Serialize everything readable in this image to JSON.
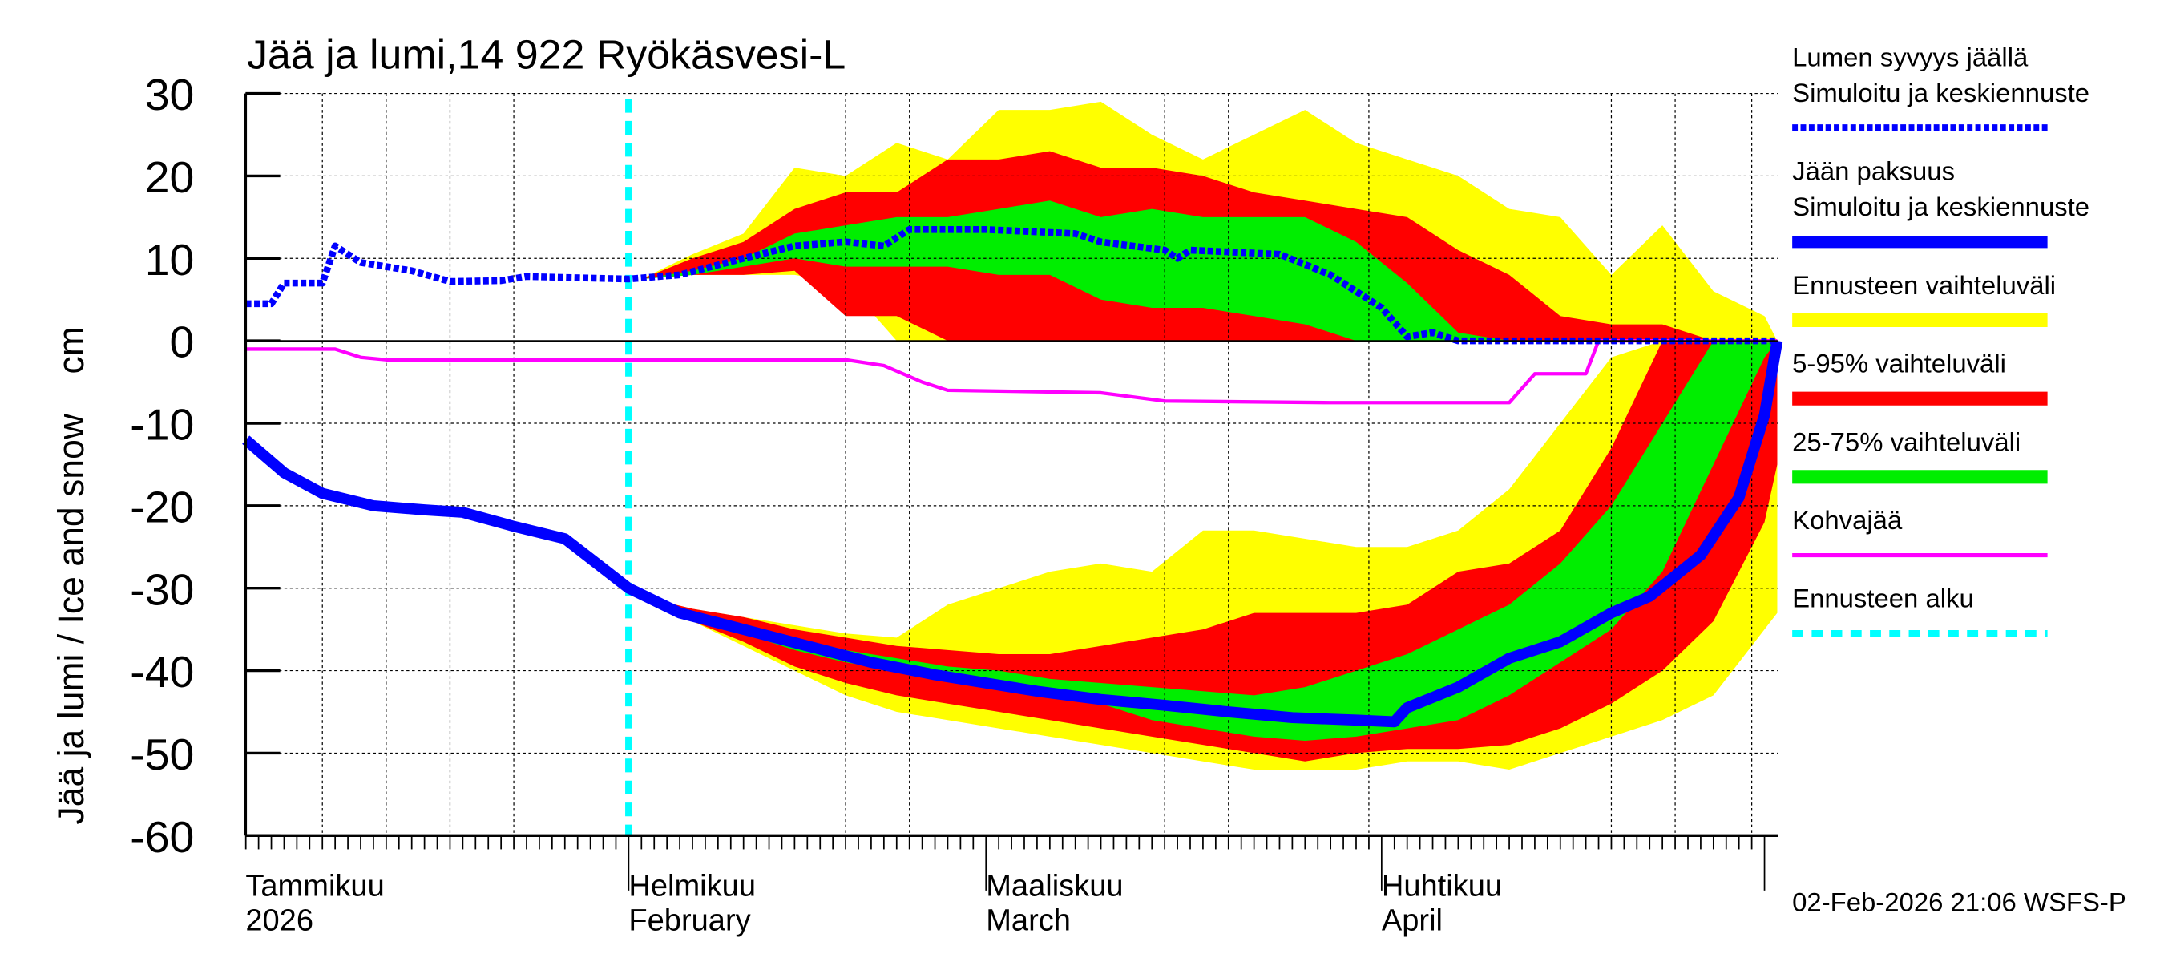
{
  "chart_data": {
    "type": "area",
    "title": "Jää ja lumi,14 922 Ryökäsvesi-L",
    "ylabel": "Jää ja lumi / Ice and snow    cm",
    "ylim": [
      -60,
      30
    ],
    "yticks": [
      30,
      20,
      10,
      0,
      -10,
      -20,
      -30,
      -40,
      -50,
      -60
    ],
    "xlim": [
      "2026-01-02",
      "2026-05-02"
    ],
    "grid": true,
    "legend_placement": "right",
    "month_labels": [
      {
        "date": "2026-01-01",
        "fi": "Tammikuu",
        "en": "2026"
      },
      {
        "date": "2026-02-01",
        "fi": "Helmikuu",
        "en": "February"
      },
      {
        "date": "2026-03-01",
        "fi": "Maaliskuu",
        "en": "March"
      },
      {
        "date": "2026-04-01",
        "fi": "Huhtikuu",
        "en": "April"
      }
    ],
    "forecast_start": "2026-02-01",
    "footer": "02-Feb-2026 21:06 WSFS-P",
    "colors": {
      "snow": "#0000ff",
      "ice": "#0000ff",
      "yellow": "#ffff00",
      "red": "#ff0000",
      "green": "#00ee00",
      "kohva": "#ff00ff",
      "forecast_start": "#00ffff"
    },
    "legend": [
      {
        "label1": "Lumen syvyys jäällä",
        "label2": "Simuloitu ja keskiennuste",
        "style": "dotted",
        "color": "#0000ff"
      },
      {
        "label1": "Jään paksuus",
        "label2": "Simuloitu ja keskiennuste",
        "style": "thick",
        "color": "#0000ff"
      },
      {
        "label1": "Ennusteen vaihteluväli",
        "style": "band",
        "color": "#ffff00"
      },
      {
        "label1": "5-95% vaihteluväli",
        "style": "band",
        "color": "#ff0000"
      },
      {
        "label1": "25-75% vaihteluväli",
        "style": "band",
        "color": "#00ee00"
      },
      {
        "label1": "Kohvajää",
        "style": "line",
        "color": "#ff00ff"
      },
      {
        "label1": "Ennusteen alku",
        "style": "dashed",
        "color": "#00ffff"
      }
    ],
    "snow_depth": {
      "dates": [
        "2026-01-02",
        "2026-01-04",
        "2026-01-05",
        "2026-01-08",
        "2026-01-09",
        "2026-01-11",
        "2026-01-15",
        "2026-01-18",
        "2026-01-22",
        "2026-01-24",
        "2026-02-01",
        "2026-02-05",
        "2026-02-10",
        "2026-02-14",
        "2026-02-18",
        "2026-02-21",
        "2026-02-23",
        "2026-03-01",
        "2026-03-08",
        "2026-03-10",
        "2026-03-15",
        "2026-03-16",
        "2026-03-17",
        "2026-03-24",
        "2026-03-28",
        "2026-04-01",
        "2026-04-03",
        "2026-04-05",
        "2026-04-07",
        "2026-05-02"
      ],
      "values": [
        4.5,
        4.5,
        7,
        7,
        11.5,
        9.5,
        8.5,
        7.2,
        7.3,
        7.8,
        7.5,
        8,
        10,
        11.5,
        12,
        11.5,
        13.5,
        13.5,
        13,
        12,
        11,
        10,
        11,
        10.5,
        8,
        4,
        0.5,
        1,
        0,
        0
      ]
    },
    "ice_thickness": {
      "dates": [
        "2026-01-02",
        "2026-01-05",
        "2026-01-08",
        "2026-01-12",
        "2026-01-16",
        "2026-01-19",
        "2026-01-23",
        "2026-01-27",
        "2026-02-01",
        "2026-02-05",
        "2026-02-10",
        "2026-02-15",
        "2026-02-20",
        "2026-02-25",
        "2026-03-01",
        "2026-03-05",
        "2026-03-10",
        "2026-03-15",
        "2026-03-20",
        "2026-03-25",
        "2026-03-30",
        "2026-04-02",
        "2026-04-03",
        "2026-04-07",
        "2026-04-11",
        "2026-04-15",
        "2026-04-19",
        "2026-04-22",
        "2026-04-26",
        "2026-04-29",
        "2026-05-01",
        "2026-05-02"
      ],
      "values": [
        -12,
        -16,
        -18.5,
        -20,
        -20.5,
        -20.8,
        -22.5,
        -24,
        -30,
        -33,
        -35,
        -37,
        -39,
        -40.5,
        -41.5,
        -42.5,
        -43.5,
        -44.2,
        -45,
        -45.7,
        -46,
        -46.2,
        -44.5,
        -42,
        -38.5,
        -36.5,
        -33,
        -31,
        -26,
        -19,
        -9,
        0
      ]
    },
    "kohvajaa": {
      "dates": [
        "2026-01-02",
        "2026-01-09",
        "2026-01-11",
        "2026-01-13",
        "2026-02-18",
        "2026-02-21",
        "2026-02-24",
        "2026-02-26",
        "2026-03-10",
        "2026-03-15",
        "2026-03-28",
        "2026-04-11",
        "2026-04-13",
        "2026-04-17",
        "2026-04-18",
        "2026-05-02"
      ],
      "values": [
        -1,
        -1,
        -2,
        -2.3,
        -2.3,
        -3,
        -5,
        -6,
        -6.3,
        -7.3,
        -7.5,
        -7.5,
        -4,
        -4,
        0,
        0
      ]
    },
    "forecast_dates": [
      "2026-02-02",
      "2026-02-06",
      "2026-02-10",
      "2026-02-14",
      "2026-02-18",
      "2026-02-22",
      "2026-02-26",
      "2026-03-02",
      "2026-03-06",
      "2026-03-10",
      "2026-03-14",
      "2026-03-18",
      "2026-03-22",
      "2026-03-26",
      "2026-03-30",
      "2026-04-03",
      "2026-04-07",
      "2026-04-11",
      "2026-04-15",
      "2026-04-19",
      "2026-04-23",
      "2026-04-27",
      "2026-05-01",
      "2026-05-02"
    ],
    "snow_bands": {
      "min": [
        7.5,
        8,
        8,
        8,
        7,
        0,
        0,
        0,
        0,
        0,
        0,
        0,
        0,
        0,
        0,
        0,
        0,
        0,
        0,
        0,
        0,
        0,
        0,
        0
      ],
      "p5": [
        7.5,
        8,
        8,
        8.5,
        3,
        3,
        0,
        0,
        0,
        0,
        0,
        0,
        0,
        0,
        0,
        0,
        0,
        0,
        0,
        0,
        0,
        0,
        0,
        0
      ],
      "p25": [
        7.5,
        8,
        9,
        10,
        9,
        9,
        9,
        8,
        8,
        5,
        4,
        4,
        3,
        2,
        0,
        0,
        0,
        0,
        0,
        0,
        0,
        0,
        0,
        0
      ],
      "p75": [
        7.5,
        8.5,
        10,
        13,
        14,
        15,
        15,
        16,
        17,
        15,
        16,
        15,
        15,
        15,
        12,
        7,
        1,
        0,
        0,
        0,
        0,
        0,
        0,
        0
      ],
      "p95": [
        7.5,
        10,
        12,
        16,
        18,
        18,
        22,
        22,
        23,
        21,
        21,
        20,
        18,
        17,
        16,
        15,
        11,
        8,
        3,
        2,
        2,
        0,
        0,
        0
      ],
      "max": [
        7.5,
        10.5,
        13,
        21,
        20,
        24,
        22,
        28,
        28,
        29,
        25,
        22,
        25,
        28,
        24,
        22,
        20,
        16,
        15,
        8,
        14,
        6,
        3,
        0
      ]
    },
    "ice_bands": {
      "min": [
        -31,
        -34,
        -37,
        -40,
        -43,
        -45,
        -46,
        -47,
        -48,
        -49,
        -50,
        -51,
        -52,
        -52,
        -52,
        -51,
        -51,
        -52,
        -50,
        -48,
        -46,
        -43,
        -35,
        -33
      ],
      "p5": [
        -31,
        -34,
        -36.5,
        -39.5,
        -41.5,
        -43,
        -44,
        -45,
        -46,
        -47,
        -48,
        -49,
        -50,
        -51,
        -50,
        -49.5,
        -49.5,
        -49,
        -47,
        -44,
        -40,
        -34,
        -22,
        -15
      ],
      "p25": [
        -31,
        -33.5,
        -35.5,
        -37.5,
        -39,
        -40,
        -41,
        -42,
        -43,
        -44,
        -46,
        -47,
        -48,
        -48.5,
        -48,
        -47,
        -46,
        -43,
        -39,
        -35,
        -28,
        -15,
        -2,
        0
      ],
      "p75": [
        -31,
        -33,
        -34.5,
        -36,
        -37.5,
        -38.5,
        -39.5,
        -40,
        -41,
        -41.5,
        -42,
        -42.5,
        -43,
        -42,
        -40,
        -38,
        -35,
        -32,
        -27,
        -20,
        -10,
        0,
        0,
        0
      ],
      "p95": [
        -31,
        -32.5,
        -33.5,
        -35,
        -36,
        -37,
        -37.5,
        -38,
        -38,
        -37,
        -36,
        -35,
        -33,
        -33,
        -33,
        -32,
        -28,
        -27,
        -23,
        -13,
        0,
        0,
        0,
        0
      ],
      "max": [
        -31,
        -32.5,
        -33.5,
        -34.5,
        -35.5,
        -36,
        -32,
        -30,
        -28,
        -27,
        -28,
        -23,
        -23,
        -24,
        -25,
        -25,
        -23,
        -18,
        -10,
        -2,
        0,
        0,
        0,
        0
      ]
    }
  }
}
